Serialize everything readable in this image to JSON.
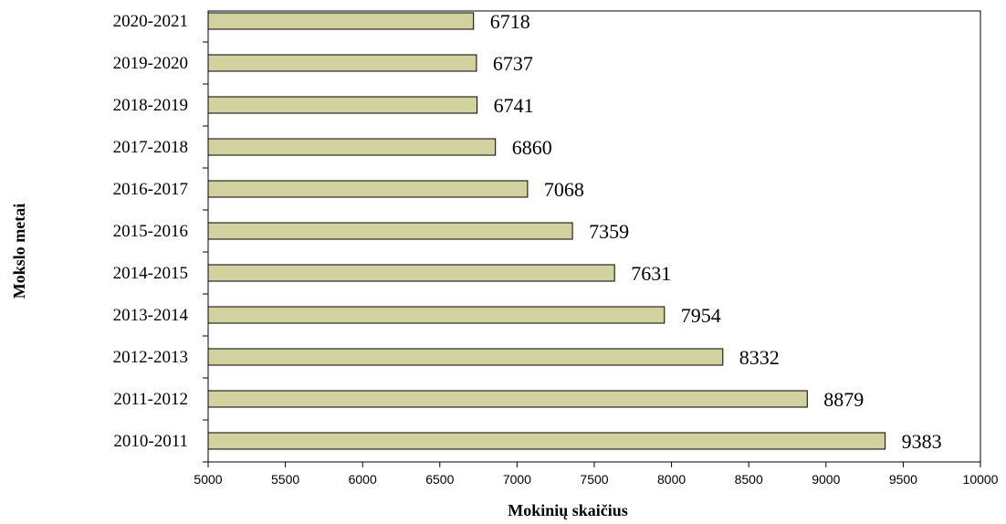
{
  "chart_data": {
    "type": "bar",
    "orientation": "horizontal",
    "categories": [
      "2010-2011",
      "2011-2012",
      "2012-2013",
      "2013-2014",
      "2014-2015",
      "2015-2016",
      "2016-2017",
      "2017-2018",
      "2018-2019",
      "2019-2020",
      "2020-2021"
    ],
    "values": [
      9383,
      8879,
      8332,
      7954,
      7631,
      7359,
      7068,
      6860,
      6741,
      6737,
      6718
    ],
    "xlabel": "Mokinių skaičius",
    "ylabel": "Mokslo metai",
    "xlim": [
      5000,
      10000
    ],
    "xticks": [
      5000,
      5500,
      6000,
      6500,
      7000,
      7500,
      8000,
      8500,
      9000,
      9500,
      10000
    ],
    "grid": false,
    "legend": "none",
    "bar_color": "#d2d2a0",
    "bar_stroke": "#000000",
    "data_labels": true
  }
}
